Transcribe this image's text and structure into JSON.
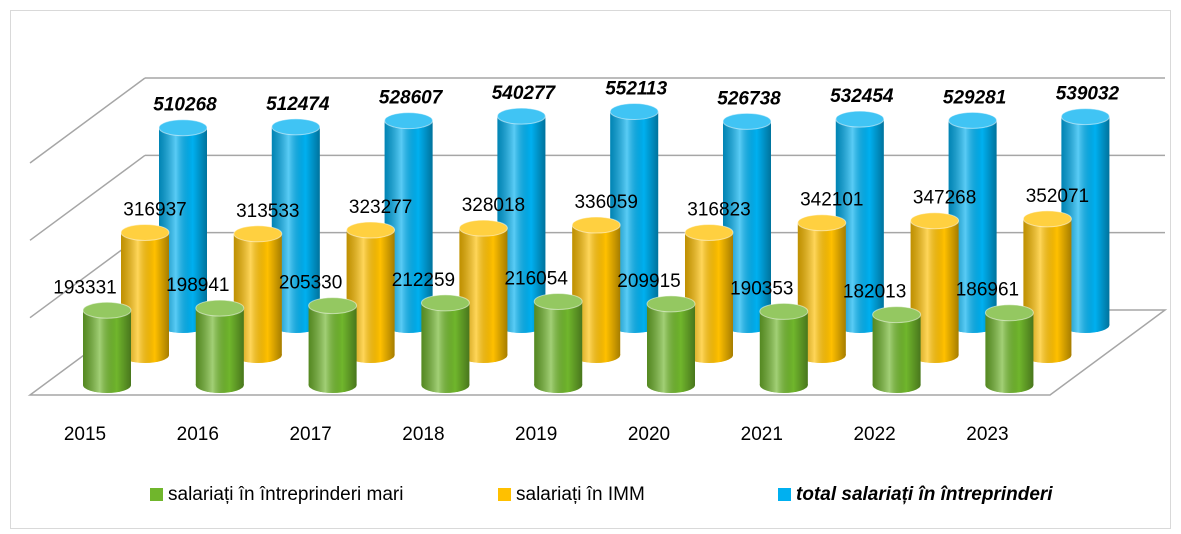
{
  "chart_data": {
    "type": "bar3d",
    "categories": [
      "2015",
      "2016",
      "2017",
      "2018",
      "2019",
      "2020",
      "2021",
      "2022",
      "2023"
    ],
    "series": [
      {
        "name": "salariați în întreprinderi mari",
        "color": "#70b62c",
        "values": [
          193331,
          198941,
          205330,
          212259,
          216054,
          209915,
          190353,
          182013,
          186961
        ]
      },
      {
        "name": "salariați în IMM",
        "color": "#ffc000",
        "values": [
          316937,
          313533,
          323277,
          328018,
          336059,
          316823,
          342101,
          347268,
          352071
        ]
      },
      {
        "name": "total salariați în întreprinderi",
        "color": "#00b0f0",
        "values": [
          510268,
          512474,
          528607,
          540277,
          552113,
          526738,
          532454,
          529281,
          539032
        ]
      }
    ],
    "ylim": [
      0,
      600000
    ],
    "yticks": [
      0,
      200000,
      400000,
      600000
    ],
    "grid": true,
    "legend": "bottom"
  }
}
